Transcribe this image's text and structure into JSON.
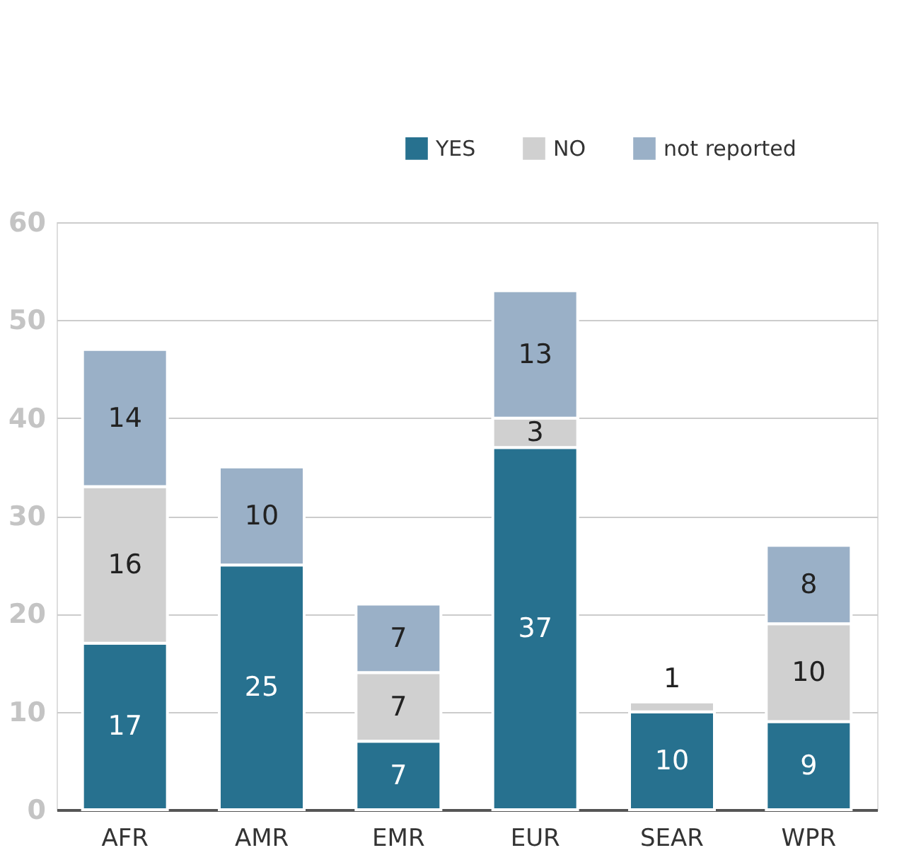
{
  "chart_data": {
    "type": "bar",
    "stacked": true,
    "categories": [
      "AFR",
      "AMR",
      "EMR",
      "EUR",
      "SEAR",
      "WPR"
    ],
    "series": [
      {
        "name": "YES",
        "color": "#27718f",
        "values": [
          17,
          25,
          7,
          37,
          10,
          9
        ]
      },
      {
        "name": "NO",
        "color": "#d0d0d0",
        "values": [
          16,
          null,
          7,
          3,
          1,
          10
        ]
      },
      {
        "name": "not reported",
        "color": "#9ab0c7",
        "values": [
          14,
          10,
          7,
          13,
          null,
          8
        ]
      }
    ],
    "ylim": [
      0,
      60
    ],
    "yticks": [
      0,
      10,
      20,
      30,
      40,
      50,
      60
    ],
    "grid": "y",
    "legend": "top right",
    "data_labels": true
  }
}
